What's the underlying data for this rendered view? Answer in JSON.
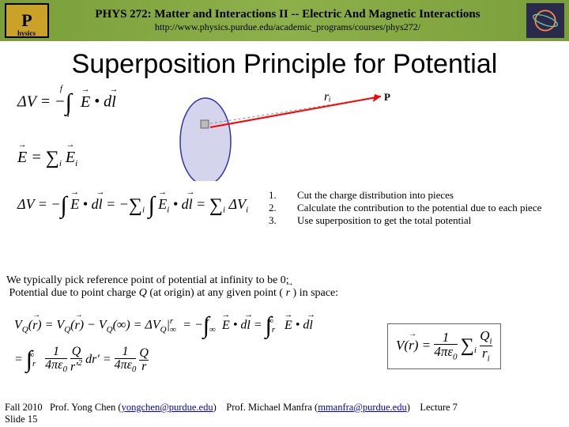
{
  "header": {
    "course_title": "PHYS 272: Matter and Interactions II -- Electric And Magnetic Interactions",
    "course_url": "http://www.physics.purdue.edu/academic_programs/courses/phys272/",
    "logo_left_letter": "P"
  },
  "slide": {
    "title": "Superposition Principle for Potential"
  },
  "diagram": {
    "ellipse_fill": "#d4d4ec",
    "ellipse_stroke": "#3333aa",
    "line_color": "#ff0000",
    "dash_color": "#888888",
    "r_label": "rᵢ",
    "p_label": "P"
  },
  "equations": {
    "eq1_html": "Δ<i>V</i> = −<span class='int'>∫</span><sub style='position:relative;left:-6px;top:8px'>i</sub><sup style='position:relative;left:-18px;top:-12px'>f</sup> <span class='vec'>E</span> • d<span class='vec'>l</span>",
    "eq2_html": "<span class='vec'>E</span> = <span class='sum'>∑</span><sub>i</sub> <span class='vec'>E</span><sub>i</sub>",
    "eq3_html": "Δ<i>V</i> = −<span class='int'>∫</span> <span class='vec'>E</span> • d<span class='vec'>l</span> = −<span class='sum'>∑</span><sub>i</sub> <span class='int'>∫</span> <span class='vec'>E</span><sub>i</sub> • d<span class='vec'>l</span> = <span class='sum'>∑</span><sub>i</sub> Δ<i>V</i><sub>i</sub>",
    "eq4_html": "<i>V</i><sub>Q</sub>(<span class='rvec'>r</span>) = <i>V</i><sub>Q</sub>(<span class='rvec'>r</span>) − <i>V</i><sub>Q</sub>(∞) = Δ<i>V</i><sub>Q</sub>|<sub>∞</sub><sup style='position:relative;left:-8px'>r</sup> = −<span class='int'>∫</span><sub>∞</sub><sup style='position:relative;left:-12px'>r</sup> <span class='vec'>E</span> • d<span class='vec'>l</span> = <span class='int'>∫</span><sub>r</sub><sup style='position:relative;left:-10px'>∞</sup> <span class='vec'>E</span> • d<span class='vec'>l</span>",
    "eq5_html": "= <span class='int'>∫</span><sub>r</sub><sup style='position:relative;left:-10px'>∞</sup> <span style='display:inline-block;text-align:center;vertical-align:middle;line-height:1'><span style='display:block'>1</span><span style='display:block;border-top:1px solid #000'>4πε<sub>0</sub></span></span> <span style='display:inline-block;text-align:center;vertical-align:middle;line-height:1'><span style='display:block'><i>Q</i></span><span style='display:block;border-top:1px solid #000'>r'<sup>2</sup></span></span> dr' = <span style='display:inline-block;text-align:center;vertical-align:middle;line-height:1'><span style='display:block'>1</span><span style='display:block;border-top:1px solid #000'>4πε<sub>0</sub></span></span> <span style='display:inline-block;text-align:center;vertical-align:middle;line-height:1'><span style='display:block'><i>Q</i></span><span style='display:block;border-top:1px solid #000'>r</span></span>",
    "eq6_html": "<i>V</i>(<span class='rvec'>r</span>) = <span style='display:inline-block;text-align:center;vertical-align:middle;line-height:1'><span style='display:block'>1</span><span style='display:block;border-top:1px solid #000'>4πε<sub>0</sub></span></span> <span class='sum'>∑</span><sub>i</sub> <span style='display:inline-block;text-align:center;vertical-align:middle;line-height:1'><span style='display:block'><i>Q</i><sub>i</sub></span><span style='display:block;border-top:1px solid #000'>r<sub>i</sub></span></span>"
  },
  "steps": [
    {
      "num": "1.",
      "text": "Cut the charge distribution into pieces"
    },
    {
      "num": "2.",
      "text": "Calculate the contribution to the potential due to each piece"
    },
    {
      "num": "3.",
      "text": "Use superposition to get the total potential"
    }
  ],
  "paragraph": {
    "line1": "We typically pick reference point of potential at infinity to be 0;",
    "line2_a": "Potential due to point charge ",
    "line2_q": "Q",
    "line2_b": " (at origin) at any given point ( ",
    "line2_r": "r",
    "line2_c": " ) in space:"
  },
  "footer": {
    "semester": "Fall 2010",
    "prof1": "Prof. Yong Chen (",
    "email1": "yongchen@purdue.edu",
    "prof2": "Prof. Michael Manfra (",
    "email2": "mmanfra@purdue.edu",
    "lecture": "Lecture 7",
    "slide": "Slide 15"
  }
}
